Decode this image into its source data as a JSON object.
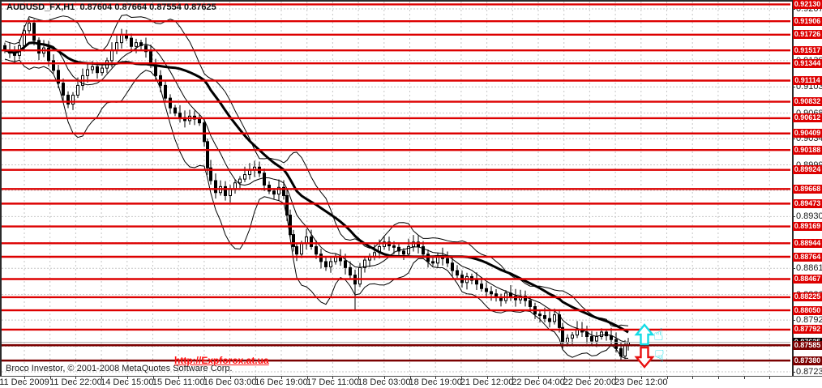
{
  "window": {
    "title": {
      "symbol_period": "AUDUSD_FX,H1",
      "open": "0.87604",
      "high": "0.87664",
      "low": "0.87554",
      "close": "0.87625"
    }
  },
  "footer": {
    "copyright": "Broco Investor, © 2001-2008 MetaQuotes Software Corp."
  },
  "watermark": {
    "url": "http://Expforox.at.ua"
  },
  "colors": {
    "level_red": "#dd0000",
    "level_maroon": "#7b0000",
    "label_text": "#ffffff",
    "axis_text": "#1c1c1c",
    "grid": "#c6c6c6",
    "current_line": "#b4b4b4",
    "current_label_bg": "#000000",
    "bull_body": "#ffffff",
    "bear_body": "#000000",
    "candle_outline": "#000000",
    "overlay_line": "#000000",
    "cyan": "#14dce6",
    "arrow_red": "#e81010",
    "link_red": "#ff1111"
  },
  "chart_data": {
    "type": "candlestick",
    "symbol": "AUDUSD_FX",
    "timeframe": "H1",
    "last_bar_ohlc": {
      "open": 0.87604,
      "high": 0.87664,
      "low": 0.87554,
      "close": 0.87625
    },
    "current_price": 0.87625,
    "current_price_label": "0.87625",
    "y_axis": {
      "ticks": [
        "0.92070",
        "0.91720",
        "0.91380",
        "0.91030",
        "0.90680",
        "0.90340",
        "0.89990",
        "0.89650",
        "0.89300",
        "0.88950",
        "0.88610",
        "0.88260",
        "0.87920",
        "0.87570",
        "0.87230"
      ],
      "min": 0.8723,
      "max": 0.9207
    },
    "x_axis": {
      "labels": [
        "11 Dec 2009",
        "11 Dec 22:00",
        "14 Dec 15:00",
        "15 Dec 11:00",
        "16 Dec 03:00",
        "16 Dec 19:00",
        "17 Dec 11:00",
        "18 Dec 03:00",
        "18 Dec 19:00",
        "21 Dec 12:00",
        "22 Dec 04:00",
        "22 Dec 20:00",
        "23 Dec 12:00"
      ]
    },
    "levels": {
      "red": [
        "0.92130",
        "0.91906",
        "0.91726",
        "0.91517",
        "0.91344",
        "0.91114",
        "0.90832",
        "0.90612",
        "0.90409",
        "0.90188",
        "0.89924",
        "0.89668",
        "0.89473",
        "0.89169",
        "0.88944",
        "0.88764",
        "0.88467",
        "0.88225",
        "0.88050",
        "0.87792"
      ],
      "maroon": [
        "0.87585",
        "0.87380"
      ]
    },
    "overlays": {
      "bollinger_window": 12,
      "bollinger_mult": 2.2,
      "ma_mid_window": 8,
      "ma_slow_window": 22
    },
    "candles_xc": [
      [
        6,
        0.9152
      ],
      [
        12,
        0.9148
      ],
      [
        18,
        0.9145
      ],
      [
        24,
        0.9158
      ],
      [
        30,
        0.9178
      ],
      [
        36,
        0.9188
      ],
      [
        42,
        0.9165
      ],
      [
        48,
        0.9148
      ],
      [
        54,
        0.9155
      ],
      [
        60,
        0.9138
      ],
      [
        66,
        0.9125
      ],
      [
        72,
        0.9108
      ],
      [
        78,
        0.9092
      ],
      [
        84,
        0.908
      ],
      [
        90,
        0.9092
      ],
      [
        96,
        0.9105
      ],
      [
        102,
        0.9118
      ],
      [
        108,
        0.9126
      ],
      [
        114,
        0.913
      ],
      [
        120,
        0.9122
      ],
      [
        126,
        0.9128
      ],
      [
        132,
        0.9138
      ],
      [
        138,
        0.9152
      ],
      [
        144,
        0.9162
      ],
      [
        150,
        0.9172
      ],
      [
        156,
        0.9168
      ],
      [
        162,
        0.9157
      ],
      [
        168,
        0.9162
      ],
      [
        174,
        0.9158
      ],
      [
        180,
        0.915
      ],
      [
        186,
        0.9132
      ],
      [
        192,
        0.9118
      ],
      [
        198,
        0.9105
      ],
      [
        204,
        0.9088
      ],
      [
        210,
        0.9075
      ],
      [
        216,
        0.9068
      ],
      [
        222,
        0.9062
      ],
      [
        228,
        0.9058
      ],
      [
        234,
        0.9064
      ],
      [
        240,
        0.906
      ],
      [
        246,
        0.9055
      ],
      [
        252,
        0.903
      ],
      [
        256,
        0.8995
      ],
      [
        260,
        0.8978
      ],
      [
        266,
        0.8962
      ],
      [
        272,
        0.897
      ],
      [
        278,
        0.8958
      ],
      [
        284,
        0.8966
      ],
      [
        290,
        0.8975
      ],
      [
        296,
        0.898
      ],
      [
        302,
        0.8986
      ],
      [
        308,
        0.8992
      ],
      [
        314,
        0.8996
      ],
      [
        320,
        0.8988
      ],
      [
        326,
        0.8972
      ],
      [
        332,
        0.8964
      ],
      [
        338,
        0.896
      ],
      [
        344,
        0.8969
      ],
      [
        350,
        0.8958
      ],
      [
        354,
        0.8932
      ],
      [
        358,
        0.8906
      ],
      [
        362,
        0.889
      ],
      [
        366,
        0.888
      ],
      [
        372,
        0.8894
      ],
      [
        378,
        0.8903
      ],
      [
        384,
        0.889
      ],
      [
        390,
        0.888
      ],
      [
        396,
        0.887
      ],
      [
        402,
        0.8863
      ],
      [
        408,
        0.887
      ],
      [
        414,
        0.8876
      ],
      [
        420,
        0.8871
      ],
      [
        426,
        0.8862
      ],
      [
        432,
        0.8852
      ],
      [
        438,
        0.884
      ],
      [
        444,
        0.8862
      ],
      [
        450,
        0.8872
      ],
      [
        456,
        0.8877
      ],
      [
        462,
        0.8882
      ],
      [
        468,
        0.889
      ],
      [
        474,
        0.8896
      ],
      [
        480,
        0.8891
      ],
      [
        486,
        0.8889
      ],
      [
        492,
        0.8884
      ],
      [
        498,
        0.888
      ],
      [
        504,
        0.889
      ],
      [
        510,
        0.8896
      ],
      [
        516,
        0.889
      ],
      [
        522,
        0.888
      ],
      [
        528,
        0.887
      ],
      [
        534,
        0.8868
      ],
      [
        540,
        0.8878
      ],
      [
        546,
        0.8874
      ],
      [
        552,
        0.8868
      ],
      [
        558,
        0.8858
      ],
      [
        564,
        0.8852
      ],
      [
        570,
        0.8842
      ],
      [
        576,
        0.885
      ],
      [
        582,
        0.8845
      ],
      [
        588,
        0.884
      ],
      [
        594,
        0.8834
      ],
      [
        600,
        0.883
      ],
      [
        606,
        0.8827
      ],
      [
        612,
        0.8822
      ],
      [
        618,
        0.8818
      ],
      [
        624,
        0.8828
      ],
      [
        630,
        0.8824
      ],
      [
        636,
        0.8819
      ],
      [
        642,
        0.8824
      ],
      [
        648,
        0.8818
      ],
      [
        654,
        0.881
      ],
      [
        660,
        0.88
      ],
      [
        666,
        0.8798
      ],
      [
        672,
        0.8794
      ],
      [
        678,
        0.879
      ],
      [
        684,
        0.8799
      ],
      [
        690,
        0.8782
      ],
      [
        694,
        0.8762
      ],
      [
        700,
        0.8768
      ],
      [
        706,
        0.8772
      ],
      [
        712,
        0.878
      ],
      [
        718,
        0.8776
      ],
      [
        724,
        0.877
      ],
      [
        730,
        0.8764
      ],
      [
        736,
        0.877
      ],
      [
        742,
        0.8776
      ],
      [
        748,
        0.8771
      ],
      [
        754,
        0.8766
      ],
      [
        760,
        0.8754
      ],
      [
        766,
        0.8744
      ],
      [
        771,
        0.8758
      ],
      [
        775,
        0.8762
      ]
    ],
    "wick_low_overrides": [
      [
        438,
        0.8806
      ],
      [
        766,
        0.8737
      ]
    ]
  },
  "signals": {
    "up_arrow": "block-arrow-up",
    "down_arrow": "block-arrow-down",
    "hand_up_char": "☝",
    "hand_down_char": "☟"
  }
}
